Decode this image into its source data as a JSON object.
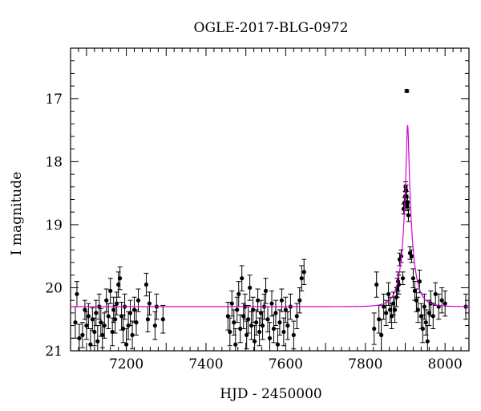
{
  "chart_data": {
    "type": "scatter",
    "title": "OGLE-2017-BLG-0972",
    "xlabel": "HJD - 2450000",
    "ylabel": "I magnitude",
    "xlim": [
      7060,
      8060
    ],
    "ylim": [
      21,
      16.2
    ],
    "y_inverted": true,
    "x_ticks": [
      7200,
      7400,
      7600,
      7800,
      8000
    ],
    "y_ticks": [
      17,
      18,
      19,
      20,
      21
    ],
    "grid": false,
    "colors": {
      "points": "#000000",
      "model": "#d400d4"
    },
    "model": {
      "type": "microlensing-lightcurve",
      "t0": 7906,
      "u0": 0.12,
      "tE": 25,
      "baseline_mag": 20.3,
      "peak_mag": 17.42
    },
    "points": [
      {
        "x": 7072,
        "y": 20.55,
        "e": 0.25
      },
      {
        "x": 7076,
        "y": 20.1,
        "e": 0.2
      },
      {
        "x": 7082,
        "y": 20.8,
        "e": 0.22
      },
      {
        "x": 7090,
        "y": 20.75,
        "e": 0.2
      },
      {
        "x": 7096,
        "y": 20.35,
        "e": 0.15
      },
      {
        "x": 7100,
        "y": 20.6,
        "e": 0.22
      },
      {
        "x": 7105,
        "y": 20.45,
        "e": 0.2
      },
      {
        "x": 7110,
        "y": 20.9,
        "e": 0.25
      },
      {
        "x": 7115,
        "y": 20.5,
        "e": 0.18
      },
      {
        "x": 7120,
        "y": 20.7,
        "e": 0.22
      },
      {
        "x": 7124,
        "y": 20.4,
        "e": 0.2
      },
      {
        "x": 7128,
        "y": 20.85,
        "e": 0.25
      },
      {
        "x": 7132,
        "y": 20.3,
        "e": 0.2
      },
      {
        "x": 7136,
        "y": 20.55,
        "e": 0.22
      },
      {
        "x": 7140,
        "y": 20.75,
        "e": 0.2
      },
      {
        "x": 7145,
        "y": 20.6,
        "e": 0.2
      },
      {
        "x": 7150,
        "y": 20.2,
        "e": 0.18
      },
      {
        "x": 7155,
        "y": 20.45,
        "e": 0.2
      },
      {
        "x": 7160,
        "y": 20.05,
        "e": 0.2
      },
      {
        "x": 7165,
        "y": 20.7,
        "e": 0.22
      },
      {
        "x": 7168,
        "y": 20.35,
        "e": 0.2
      },
      {
        "x": 7172,
        "y": 20.5,
        "e": 0.22
      },
      {
        "x": 7176,
        "y": 20.25,
        "e": 0.18
      },
      {
        "x": 7180,
        "y": 19.95,
        "e": 0.2
      },
      {
        "x": 7184,
        "y": 19.85,
        "e": 0.18
      },
      {
        "x": 7188,
        "y": 20.45,
        "e": 0.22
      },
      {
        "x": 7192,
        "y": 20.65,
        "e": 0.22
      },
      {
        "x": 7196,
        "y": 20.3,
        "e": 0.2
      },
      {
        "x": 7200,
        "y": 20.9,
        "e": 0.25
      },
      {
        "x": 7205,
        "y": 20.6,
        "e": 0.22
      },
      {
        "x": 7210,
        "y": 20.4,
        "e": 0.2
      },
      {
        "x": 7215,
        "y": 20.75,
        "e": 0.22
      },
      {
        "x": 7220,
        "y": 20.35,
        "e": 0.2
      },
      {
        "x": 7225,
        "y": 20.55,
        "e": 0.2
      },
      {
        "x": 7230,
        "y": 20.2,
        "e": 0.18
      },
      {
        "x": 7250,
        "y": 19.95,
        "e": 0.18
      },
      {
        "x": 7254,
        "y": 20.5,
        "e": 0.2
      },
      {
        "x": 7258,
        "y": 20.25,
        "e": 0.18
      },
      {
        "x": 7272,
        "y": 20.6,
        "e": 0.22
      },
      {
        "x": 7276,
        "y": 20.3,
        "e": 0.2
      },
      {
        "x": 7292,
        "y": 20.5,
        "e": 0.22
      },
      {
        "x": 7455,
        "y": 20.45,
        "e": 0.22
      },
      {
        "x": 7460,
        "y": 20.7,
        "e": 0.22
      },
      {
        "x": 7465,
        "y": 20.25,
        "e": 0.2
      },
      {
        "x": 7470,
        "y": 20.55,
        "e": 0.2
      },
      {
        "x": 7474,
        "y": 20.9,
        "e": 0.25
      },
      {
        "x": 7478,
        "y": 20.35,
        "e": 0.2
      },
      {
        "x": 7482,
        "y": 20.1,
        "e": 0.2
      },
      {
        "x": 7486,
        "y": 20.65,
        "e": 0.22
      },
      {
        "x": 7490,
        "y": 19.85,
        "e": 0.2
      },
      {
        "x": 7494,
        "y": 20.45,
        "e": 0.2
      },
      {
        "x": 7498,
        "y": 20.3,
        "e": 0.2
      },
      {
        "x": 7502,
        "y": 20.75,
        "e": 0.22
      },
      {
        "x": 7506,
        "y": 20.5,
        "e": 0.22
      },
      {
        "x": 7510,
        "y": 20.0,
        "e": 0.2
      },
      {
        "x": 7514,
        "y": 20.6,
        "e": 0.22
      },
      {
        "x": 7518,
        "y": 20.35,
        "e": 0.2
      },
      {
        "x": 7522,
        "y": 20.85,
        "e": 0.25
      },
      {
        "x": 7526,
        "y": 20.55,
        "e": 0.2
      },
      {
        "x": 7530,
        "y": 20.2,
        "e": 0.18
      },
      {
        "x": 7534,
        "y": 20.7,
        "e": 0.22
      },
      {
        "x": 7538,
        "y": 20.4,
        "e": 0.2
      },
      {
        "x": 7542,
        "y": 20.6,
        "e": 0.22
      },
      {
        "x": 7546,
        "y": 20.3,
        "e": 0.2
      },
      {
        "x": 7550,
        "y": 20.05,
        "e": 0.2
      },
      {
        "x": 7555,
        "y": 20.5,
        "e": 0.2
      },
      {
        "x": 7560,
        "y": 20.8,
        "e": 0.25
      },
      {
        "x": 7565,
        "y": 20.25,
        "e": 0.2
      },
      {
        "x": 7570,
        "y": 20.65,
        "e": 0.22
      },
      {
        "x": 7575,
        "y": 20.4,
        "e": 0.2
      },
      {
        "x": 7580,
        "y": 20.9,
        "e": 0.25
      },
      {
        "x": 7585,
        "y": 20.55,
        "e": 0.2
      },
      {
        "x": 7590,
        "y": 20.2,
        "e": 0.18
      },
      {
        "x": 7595,
        "y": 20.7,
        "e": 0.22
      },
      {
        "x": 7600,
        "y": 20.35,
        "e": 0.2
      },
      {
        "x": 7605,
        "y": 20.6,
        "e": 0.22
      },
      {
        "x": 7612,
        "y": 20.3,
        "e": 0.2
      },
      {
        "x": 7620,
        "y": 20.75,
        "e": 0.22
      },
      {
        "x": 7628,
        "y": 20.45,
        "e": 0.2
      },
      {
        "x": 7635,
        "y": 20.2,
        "e": 0.2
      },
      {
        "x": 7640,
        "y": 19.85,
        "e": 0.2
      },
      {
        "x": 7646,
        "y": 19.75,
        "e": 0.2
      },
      {
        "x": 7822,
        "y": 20.65,
        "e": 0.25
      },
      {
        "x": 7828,
        "y": 19.95,
        "e": 0.2
      },
      {
        "x": 7834,
        "y": 20.5,
        "e": 0.22
      },
      {
        "x": 7840,
        "y": 20.75,
        "e": 0.25
      },
      {
        "x": 7846,
        "y": 20.3,
        "e": 0.2
      },
      {
        "x": 7852,
        "y": 20.4,
        "e": 0.2
      },
      {
        "x": 7858,
        "y": 20.1,
        "e": 0.18
      },
      {
        "x": 7862,
        "y": 20.35,
        "e": 0.2
      },
      {
        "x": 7866,
        "y": 20.45,
        "e": 0.2
      },
      {
        "x": 7870,
        "y": 20.25,
        "e": 0.18
      },
      {
        "x": 7874,
        "y": 20.35,
        "e": 0.2
      },
      {
        "x": 7878,
        "y": 20.15,
        "e": 0.15
      },
      {
        "x": 7880,
        "y": 20.0,
        "e": 0.15
      },
      {
        "x": 7882,
        "y": 19.9,
        "e": 0.15
      },
      {
        "x": 7884,
        "y": 19.95,
        "e": 0.15
      },
      {
        "x": 7886,
        "y": 19.55,
        "e": 0.1
      },
      {
        "x": 7890,
        "y": 19.5,
        "e": 0.1
      },
      {
        "x": 7894,
        "y": 19.85,
        "e": 0.1
      },
      {
        "x": 7896,
        "y": 18.75,
        "e": 0.08
      },
      {
        "x": 7898,
        "y": 18.65,
        "e": 0.08
      },
      {
        "x": 7900,
        "y": 18.55,
        "e": 0.08
      },
      {
        "x": 7901,
        "y": 18.4,
        "e": 0.08
      },
      {
        "x": 7902,
        "y": 18.45,
        "e": 0.08
      },
      {
        "x": 7903,
        "y": 18.55,
        "e": 0.08
      },
      {
        "x": 7904,
        "y": 16.88,
        "e": 0.02
      },
      {
        "x": 7905,
        "y": 18.7,
        "e": 0.08
      },
      {
        "x": 7906,
        "y": 18.65,
        "e": 0.08
      },
      {
        "x": 7908,
        "y": 18.85,
        "e": 0.1
      },
      {
        "x": 7912,
        "y": 19.45,
        "e": 0.1
      },
      {
        "x": 7916,
        "y": 19.5,
        "e": 0.1
      },
      {
        "x": 7920,
        "y": 19.85,
        "e": 0.15
      },
      {
        "x": 7924,
        "y": 20.05,
        "e": 0.15
      },
      {
        "x": 7928,
        "y": 20.2,
        "e": 0.18
      },
      {
        "x": 7932,
        "y": 20.35,
        "e": 0.2
      },
      {
        "x": 7936,
        "y": 19.9,
        "e": 0.18
      },
      {
        "x": 7940,
        "y": 20.45,
        "e": 0.2
      },
      {
        "x": 7944,
        "y": 20.65,
        "e": 0.22
      },
      {
        "x": 7948,
        "y": 20.3,
        "e": 0.2
      },
      {
        "x": 7952,
        "y": 20.55,
        "e": 0.2
      },
      {
        "x": 7956,
        "y": 20.85,
        "e": 0.25
      },
      {
        "x": 7960,
        "y": 20.4,
        "e": 0.2
      },
      {
        "x": 7964,
        "y": 20.25,
        "e": 0.2
      },
      {
        "x": 7970,
        "y": 20.45,
        "e": 0.2
      },
      {
        "x": 7976,
        "y": 20.1,
        "e": 0.18
      },
      {
        "x": 7984,
        "y": 20.3,
        "e": 0.2
      },
      {
        "x": 7992,
        "y": 20.2,
        "e": 0.2
      },
      {
        "x": 8000,
        "y": 20.25,
        "e": 0.2
      },
      {
        "x": 8052,
        "y": 20.3,
        "e": 0.2
      }
    ]
  }
}
